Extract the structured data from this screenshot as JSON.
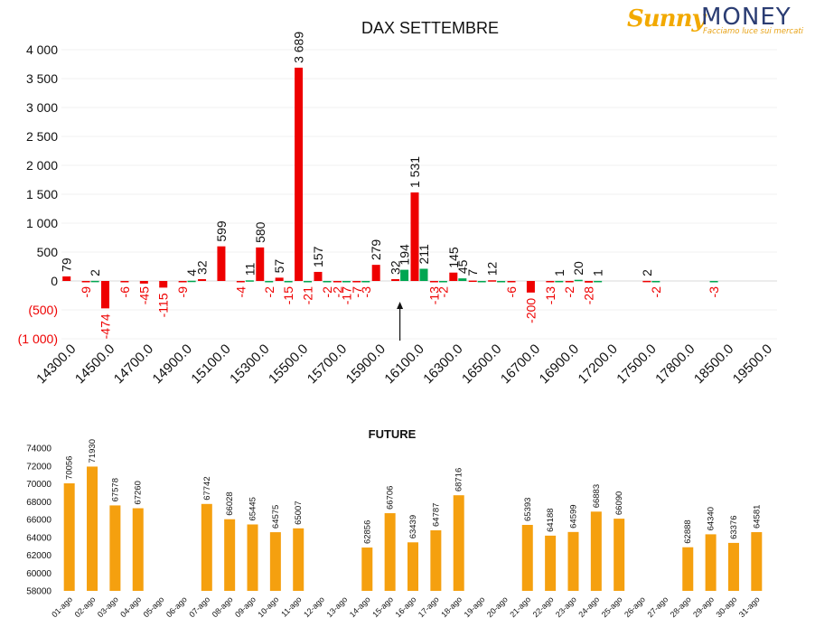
{
  "logo": {
    "brand_left": "Sunny",
    "brand_right": "MONEY",
    "tagline": "Facciamo luce sui mercati"
  },
  "colors": {
    "call": "#ee0000",
    "put": "#00a651",
    "future": "#f5a00f",
    "negative_label": "#ee0000"
  },
  "chart_data": [
    {
      "type": "bar",
      "title": "DAX SETTEMBRE",
      "xlabel": "",
      "ylabel": "",
      "ylim": [
        -1000,
        4000
      ],
      "yticks": [
        4000,
        3500,
        3000,
        2500,
        2000,
        1500,
        1000,
        500,
        0,
        -500,
        -1000
      ],
      "ytick_labels": [
        "4 000",
        "3 500",
        "3 000",
        "2 500",
        "2 000",
        "1 500",
        "1 000",
        "500",
        "0",
        "(500)",
        "(1 000)"
      ],
      "grid": true,
      "legend": "none",
      "categories": [
        "14300.0",
        "14400.0",
        "14500.0",
        "14600.0",
        "14700.0",
        "14800.0",
        "14900.0",
        "15000.0",
        "15100.0",
        "15200.0",
        "15300.0",
        "15400.0",
        "15500.0",
        "15600.0",
        "15700.0",
        "15800.0",
        "15900.0",
        "16000.0",
        "16100.0",
        "16200.0",
        "16300.0",
        "16400.0",
        "16500.0",
        "16600.0",
        "16700.0",
        "16800.0",
        "16900.0",
        "17000.0",
        "17200.0",
        "17400.0",
        "17500.0",
        "17600.0",
        "17800.0",
        "18000.0",
        "18500.0",
        "19000.0",
        "19500.0"
      ],
      "category_labels": [
        "14300.0",
        "",
        "14500.0",
        "",
        "14700.0",
        "",
        "14900.0",
        "",
        "15100.0",
        "",
        "15300.0",
        "",
        "15500.0",
        "",
        "15700.0",
        "",
        "15900.0",
        "",
        "16100.0",
        "",
        "16300.0",
        "",
        "16500.0",
        "",
        "16700.0",
        "",
        "16900.0",
        "",
        "17200.0",
        "",
        "17500.0",
        "",
        "17800.0",
        "",
        "18500.0",
        "",
        "19500.0"
      ],
      "series": [
        {
          "name": "",
          "values": [
            79,
            -9,
            -474,
            -6,
            -45,
            -115,
            -9,
            32,
            599,
            -4,
            580,
            57,
            3689,
            157,
            -2,
            -7,
            279,
            32,
            1531,
            -13,
            145,
            7,
            12,
            -6,
            -200,
            -13,
            -2,
            -28,
            null,
            null,
            2,
            null,
            null,
            null,
            null,
            null,
            null
          ],
          "labels": [
            "79",
            "-9",
            "-474",
            "-6",
            "-45",
            "-115",
            "-9",
            "32",
            "599",
            "-4",
            "580",
            "57",
            "3 689",
            "157",
            "-2",
            "-7",
            "279",
            "32",
            "1 531",
            "-13",
            "145",
            "7",
            "12",
            "-6",
            "-200",
            "-13",
            "-2",
            "-28",
            "",
            "",
            "2",
            "",
            "",
            "",
            "",
            "",
            ""
          ],
          "color": "#ee0000"
        },
        {
          "name": "",
          "values": [
            null,
            2,
            null,
            null,
            null,
            null,
            4,
            null,
            null,
            11,
            -2,
            -15,
            -21,
            -2,
            -17,
            -3,
            null,
            194,
            211,
            -2,
            45,
            -1,
            -1,
            null,
            null,
            1,
            20,
            1,
            null,
            null,
            -2,
            null,
            null,
            -3,
            null,
            null,
            null
          ],
          "labels": [
            "",
            "2",
            "",
            "",
            "",
            "",
            "4",
            "",
            "",
            "11",
            "-2",
            "-15",
            "-21",
            "-2",
            "-17",
            "-3",
            "",
            "194",
            "211",
            "-2",
            "45",
            "",
            "",
            "",
            "",
            "1",
            "20",
            "1",
            "",
            "",
            "-2",
            "",
            "",
            "-3",
            "",
            "",
            ""
          ],
          "color": "#00a651"
        }
      ],
      "annotation": {
        "type": "arrow",
        "at_category": "16000.0"
      }
    },
    {
      "type": "bar",
      "title": "FUTURE",
      "xlabel": "",
      "ylabel": "",
      "ylim": [
        58000,
        74000
      ],
      "yticks": [
        74000,
        72000,
        70000,
        68000,
        66000,
        64000,
        62000,
        60000,
        58000
      ],
      "ytick_labels": [
        "74000",
        "72000",
        "70000",
        "68000",
        "66000",
        "64000",
        "62000",
        "60000",
        "58000"
      ],
      "grid": false,
      "legend": "none",
      "categories": [
        "01-ago",
        "02-ago",
        "03-ago",
        "04-ago",
        "05-ago",
        "06-ago",
        "07-ago",
        "08-ago",
        "09-ago",
        "10-ago",
        "11-ago",
        "12-ago",
        "13-ago",
        "14-ago",
        "15-ago",
        "16-ago",
        "17-ago",
        "18-ago",
        "19-ago",
        "20-ago",
        "21-ago",
        "22-ago",
        "23-ago",
        "24-ago",
        "25-ago",
        "26-ago",
        "27-ago",
        "28-ago",
        "29-ago",
        "30-ago",
        "31-ago"
      ],
      "values": [
        70056,
        71930,
        67578,
        67260,
        null,
        null,
        67742,
        66028,
        65445,
        64575,
        65007,
        null,
        null,
        62856,
        66706,
        63439,
        64787,
        68716,
        null,
        null,
        65393,
        64188,
        64599,
        66883,
        66090,
        null,
        null,
        62888,
        64340,
        63376,
        64581
      ],
      "labels": [
        "70056",
        "71930",
        "67578",
        "67260",
        "",
        "",
        "67742",
        "66028",
        "65445",
        "64575",
        "65007",
        "",
        "",
        "62856",
        "66706",
        "63439",
        "64787",
        "68716",
        "",
        "",
        "65393",
        "64188",
        "64599",
        "66883",
        "66090",
        "",
        "",
        "62888",
        "64340",
        "63376",
        "64581"
      ],
      "color": "#f5a00f"
    }
  ]
}
